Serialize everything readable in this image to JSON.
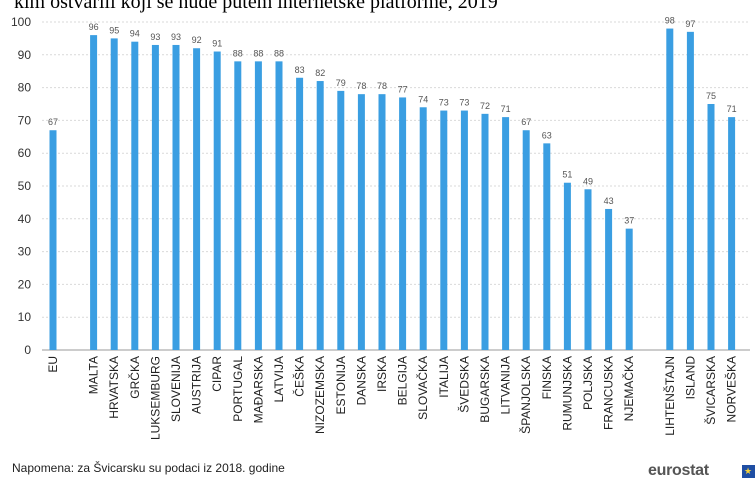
{
  "chart_data": {
    "type": "bar",
    "title": "",
    "xlabel": "",
    "ylabel": "",
    "ylim": [
      0,
      100
    ],
    "yticks": [
      0,
      10,
      20,
      30,
      40,
      50,
      60,
      70,
      80,
      90,
      100
    ],
    "grid": true,
    "legend": "none",
    "bar_color": "#3a9ee2",
    "categories": [
      "EU",
      "MALTA",
      "HRVATSKA",
      "GRČKA",
      "LUKSEMBURG",
      "SLOVENIJA",
      "AUSTRIJA",
      "CIPAR",
      "PORTUGAL",
      "MAĐARSKA",
      "LATVIJA",
      "ČEŠKA",
      "NIZOZEMSKA",
      "ESTONIJA",
      "DANSKA",
      "IRSKA",
      "BELGIJA",
      "SLOVAČKA",
      "ITALIJA",
      "ŠVEDSKA",
      "BUGARSKA",
      "LITVANIJA",
      "ŠPANJOLSKA",
      "FINSKA",
      "RUMUNJSKA",
      "POLJSKA",
      "FRANCUSKA",
      "NJEMAČKA",
      "LIHTENŠTAJN",
      "ISLAND",
      "ŠVICARSKA",
      "NORVEŠKA"
    ],
    "values": [
      67,
      96,
      95,
      94,
      93,
      93,
      92,
      91,
      88,
      88,
      88,
      83,
      82,
      79,
      78,
      78,
      77,
      74,
      73,
      73,
      72,
      71,
      67,
      63,
      51,
      49,
      43,
      37,
      98,
      97,
      75,
      71
    ]
  },
  "header": {
    "partial_title": "kim ostvarili koji se nude putem internetske platforme, 2019"
  },
  "footer": {
    "note": "Napomena: za Švicarsku su podaci iz 2018. godine",
    "logo_text": "eurostat"
  }
}
